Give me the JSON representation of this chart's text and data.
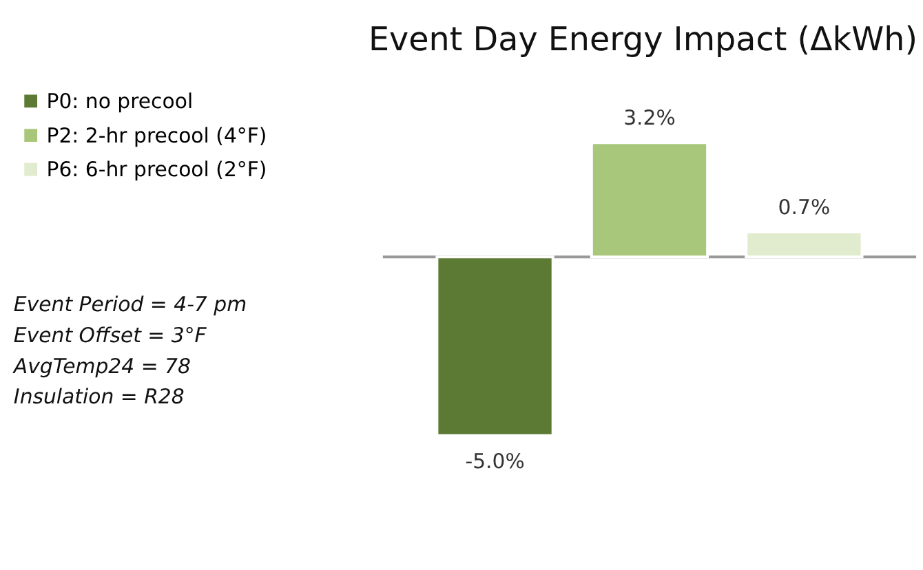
{
  "chart_data": {
    "type": "bar",
    "title": "Event Day Energy Impact (ΔkWh)",
    "categories": [
      null
    ],
    "legend": "left",
    "series": [
      {
        "name": "P0: no precool",
        "color": "#5c7a34",
        "values": [
          -5.0
        ],
        "value_labels": [
          "-5.0%"
        ]
      },
      {
        "name": "P2: 2-hr precool (4°F)",
        "color": "#a8c77a",
        "values": [
          3.2
        ],
        "value_labels": [
          "3.2%"
        ]
      },
      {
        "name": "P6: 6-hr precool (2°F)",
        "color": "#e1ebcd",
        "values": [
          0.7
        ],
        "value_labels": [
          "0.7%"
        ]
      }
    ],
    "annotations": [
      "Event Period = 4-7 pm",
      "Event Offset = 3°F",
      "AvgTemp24 = 78",
      "Insulation = R28"
    ]
  }
}
